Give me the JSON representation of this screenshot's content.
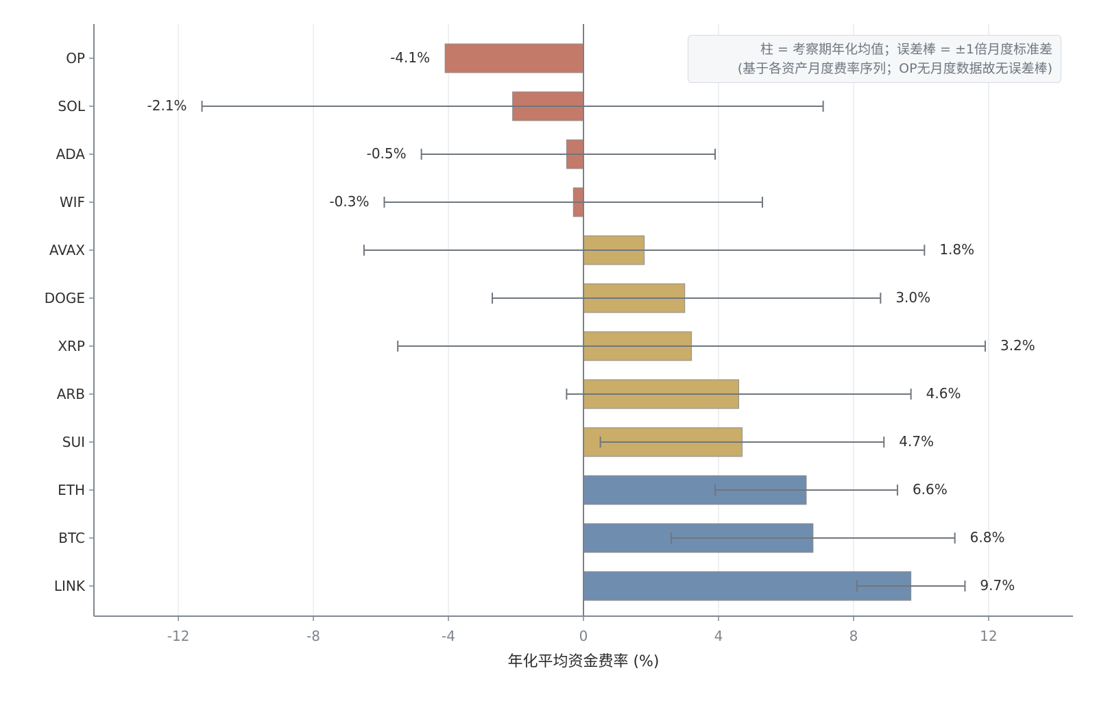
{
  "chart_data": {
    "type": "bar",
    "orientation": "horizontal",
    "categories": [
      "OP",
      "SOL",
      "ADA",
      "WIF",
      "AVAX",
      "DOGE",
      "XRP",
      "ARB",
      "SUI",
      "ETH",
      "BTC",
      "LINK"
    ],
    "values": [
      -4.1,
      -2.1,
      -0.5,
      -0.3,
      1.8,
      3.0,
      3.2,
      4.6,
      4.7,
      6.6,
      6.8,
      9.7
    ],
    "value_labels": [
      "-4.1%",
      "-2.1%",
      "-0.5%",
      "-0.3%",
      "1.8%",
      "3.0%",
      "3.2%",
      "4.6%",
      "4.7%",
      "6.6%",
      "6.8%",
      "9.7%"
    ],
    "error_bars": [
      null,
      [
        -11.3,
        7.1
      ],
      [
        -4.8,
        3.9
      ],
      [
        -5.9,
        5.3
      ],
      [
        -6.5,
        10.1
      ],
      [
        -2.7,
        8.8
      ],
      [
        -5.5,
        11.9
      ],
      [
        -0.5,
        9.7
      ],
      [
        0.5,
        8.9
      ],
      [
        3.9,
        9.3
      ],
      [
        2.6,
        11.0
      ],
      [
        8.1,
        11.3
      ]
    ],
    "bar_colors": [
      "#c47a68",
      "#c47a68",
      "#c47a68",
      "#c47a68",
      "#c9ad69",
      "#c9ad69",
      "#c9ad69",
      "#c9ad69",
      "#c9ad69",
      "#6f8dae",
      "#6f8dae",
      "#6f8dae"
    ],
    "xlabel": "年化平均资金费率 (%)",
    "ylabel": "",
    "title": "",
    "xlim": [
      -14.5,
      14.5
    ],
    "xticks": [
      -12,
      -8,
      -4,
      0,
      4,
      8,
      12
    ],
    "xtick_labels": [
      "-12",
      "-8",
      "-4",
      "0",
      "4",
      "8",
      "12"
    ],
    "grid": "vertical",
    "annotation": {
      "line1": "柱 = 考察期年化均值；误差棒 = ±1倍月度标准差",
      "line2": "(基于各资产月度费率序列；OP无月度数据故无误差棒)",
      "position": "top-right"
    }
  }
}
